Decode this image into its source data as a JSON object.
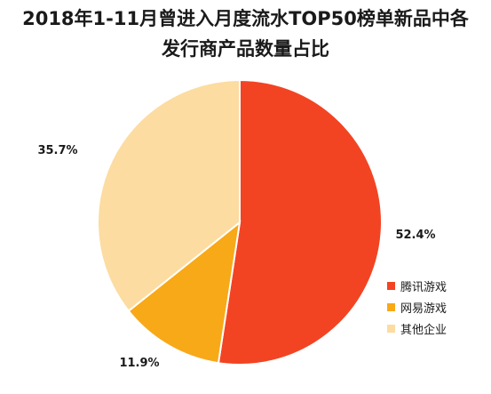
{
  "title_line1": "2018年1-11月曾进入月度流水TOP50榜单新品中各",
  "title_line2": "发行商产品数量占比",
  "chart_data": {
    "type": "pie",
    "title": "2018年1-11月曾进入月度流水TOP50榜单新品中各发行商产品数量占比",
    "categories": [
      "腾讯游戏",
      "网易游戏",
      "其他企业"
    ],
    "values": [
      52.4,
      11.9,
      35.7
    ],
    "labels": [
      "52.4%",
      "11.9%",
      "35.7%"
    ],
    "colors": [
      "#f24423",
      "#f8a918",
      "#fcdca1"
    ],
    "legend": "right"
  }
}
